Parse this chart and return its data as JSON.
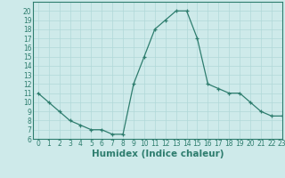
{
  "x": [
    0,
    1,
    2,
    3,
    4,
    5,
    6,
    7,
    8,
    9,
    10,
    11,
    12,
    13,
    14,
    15,
    16,
    17,
    18,
    19,
    20,
    21,
    22,
    23
  ],
  "y": [
    11,
    10,
    9,
    8,
    7.5,
    7,
    7,
    6.5,
    6.5,
    12,
    15,
    18,
    19,
    20,
    20,
    17,
    12,
    11.5,
    11,
    11,
    10,
    9,
    8.5,
    8.5
  ],
  "xlabel": "Humidex (Indice chaleur)",
  "ylim": [
    6,
    21
  ],
  "xlim": [
    -0.5,
    23
  ],
  "yticks": [
    6,
    7,
    8,
    9,
    10,
    11,
    12,
    13,
    14,
    15,
    16,
    17,
    18,
    19,
    20
  ],
  "xticks": [
    0,
    1,
    2,
    3,
    4,
    5,
    6,
    7,
    8,
    9,
    10,
    11,
    12,
    13,
    14,
    15,
    16,
    17,
    18,
    19,
    20,
    21,
    22,
    23
  ],
  "line_color": "#2e7d6e",
  "bg_color": "#ceeaea",
  "grid_color": "#b0d8d8",
  "tick_fontsize": 5.5,
  "xlabel_fontsize": 7.5
}
